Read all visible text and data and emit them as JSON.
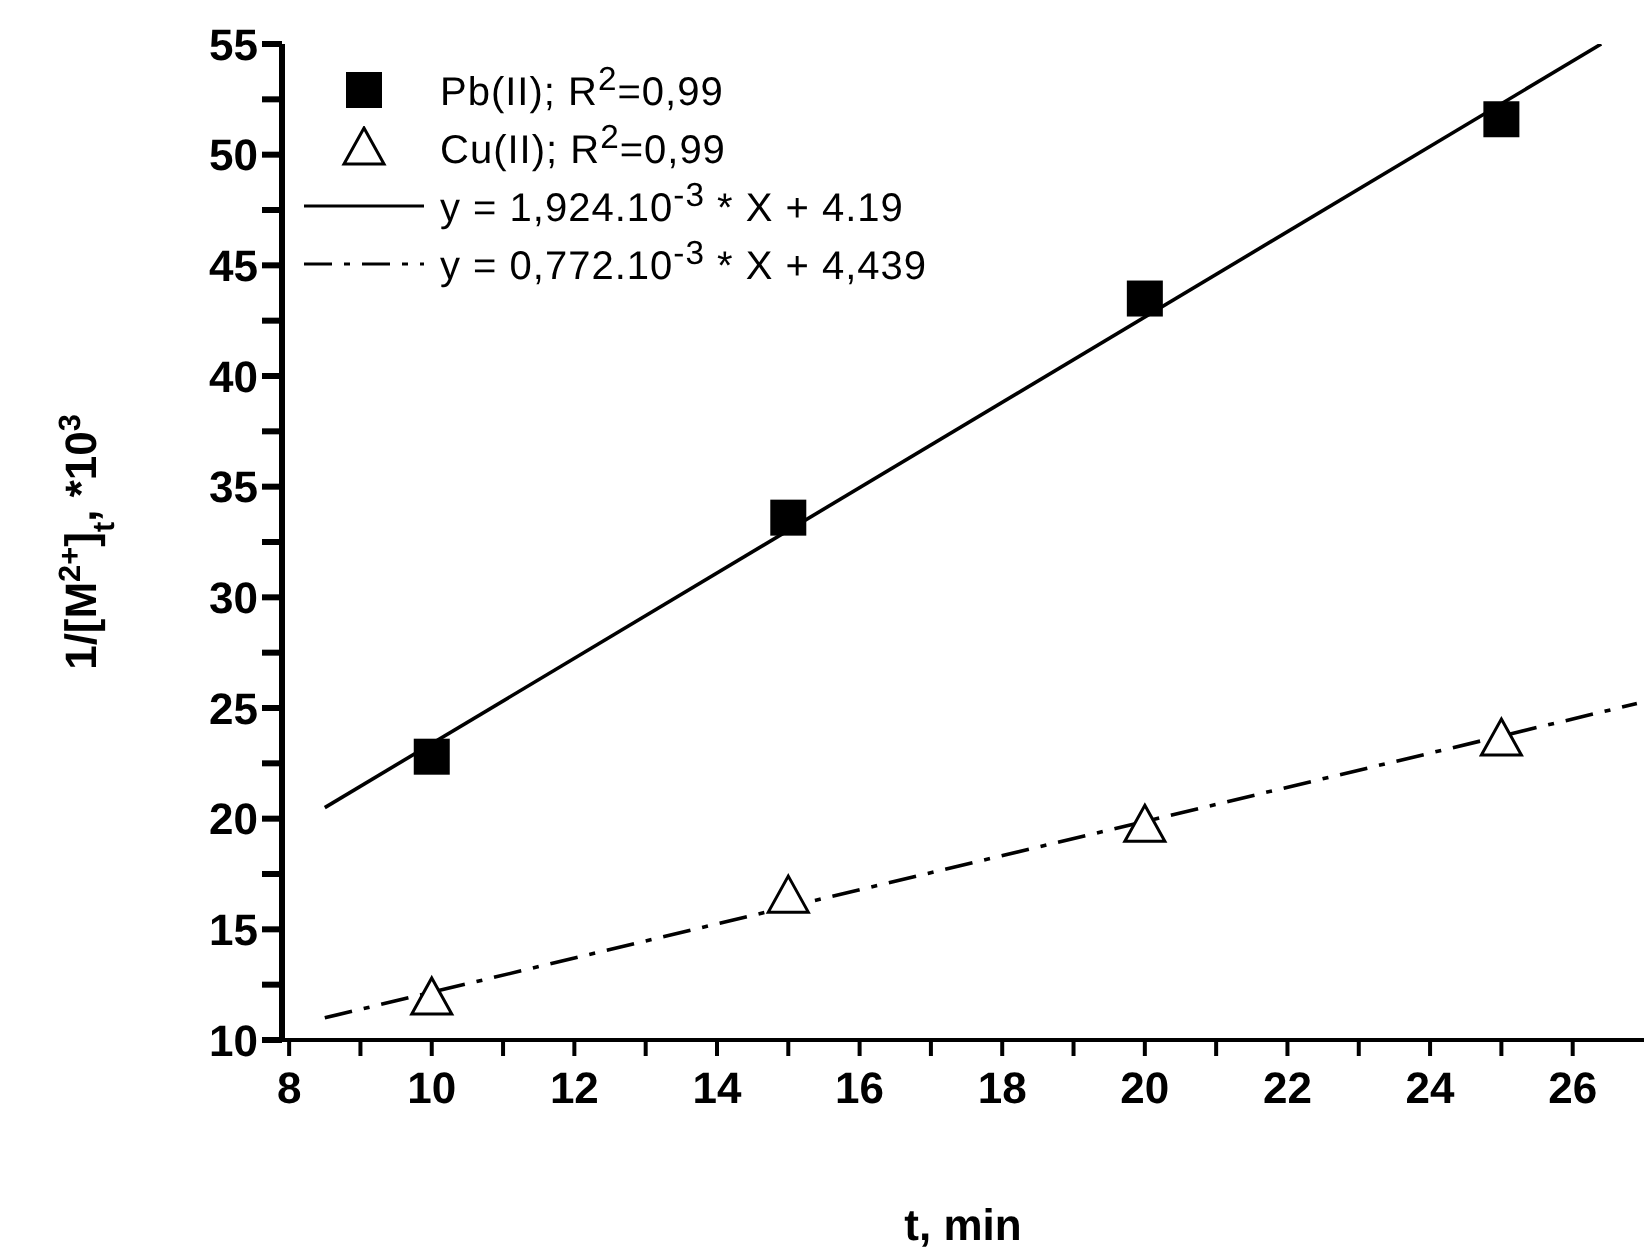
{
  "chart_data": {
    "type": "scatter",
    "xlabel": "t, min",
    "ylabel": "1/[M$^{2+}$]$_{t}$, *10$^{3}$",
    "xlim": [
      7.9,
      27
    ],
    "ylim": [
      10,
      55
    ],
    "xticks": [
      8,
      {
        "value": 9,
        "label": null
      },
      10,
      {
        "value": 11,
        "label": null
      },
      12,
      {
        "value": 13,
        "label": null
      },
      14,
      {
        "value": 15,
        "label": null
      },
      16,
      {
        "value": 17,
        "label": null
      },
      18,
      {
        "value": 19,
        "label": null
      },
      20,
      {
        "value": 21,
        "label": null
      },
      22,
      {
        "value": 23,
        "label": null
      },
      24,
      {
        "value": 25,
        "label": null
      },
      26
    ],
    "yticks": [
      10,
      {
        "value": 12.5,
        "label": null
      },
      15,
      {
        "value": 17.5,
        "label": null
      },
      20,
      {
        "value": 22.5,
        "label": null
      },
      25,
      {
        "value": 27.5,
        "label": null
      },
      30,
      {
        "value": 32.5,
        "label": null
      },
      35,
      {
        "value": 37.5,
        "label": null
      },
      40,
      {
        "value": 42.5,
        "label": null
      },
      45,
      {
        "value": 47.5,
        "label": null
      },
      50,
      {
        "value": 52.5,
        "label": null
      },
      55
    ],
    "legend": "top left",
    "series": [
      {
        "name": "Pb(II); R$^{2}$=0,99",
        "marker": "square",
        "color": "#000000",
        "x": [
          10,
          15,
          20,
          25
        ],
        "values": [
          22.8,
          33.6,
          43.5,
          51.6
        ]
      },
      {
        "name": "Cu(II); R$^{2}$=0,99",
        "marker": "triangle",
        "color": "#000000",
        "x": [
          10,
          15,
          20,
          25
        ],
        "values": [
          11.9,
          16.5,
          19.7,
          23.6
        ]
      },
      {
        "name": "y = 1,924.10$^{-3}$ * X + 4.19",
        "type": "line",
        "marker": "none",
        "line_style": "solid",
        "color": "#000000",
        "x": [
          8.5,
          26.4
        ],
        "values": [
          20.5,
          55
        ]
      },
      {
        "name": "y = 0,772.10$^{-3}$ * X + 4,439",
        "type": "line",
        "marker": "none",
        "line_style": "dashdot",
        "color": "#000000",
        "x": [
          8.5,
          26.9
        ],
        "values": [
          11.0,
          25.2
        ]
      }
    ]
  }
}
